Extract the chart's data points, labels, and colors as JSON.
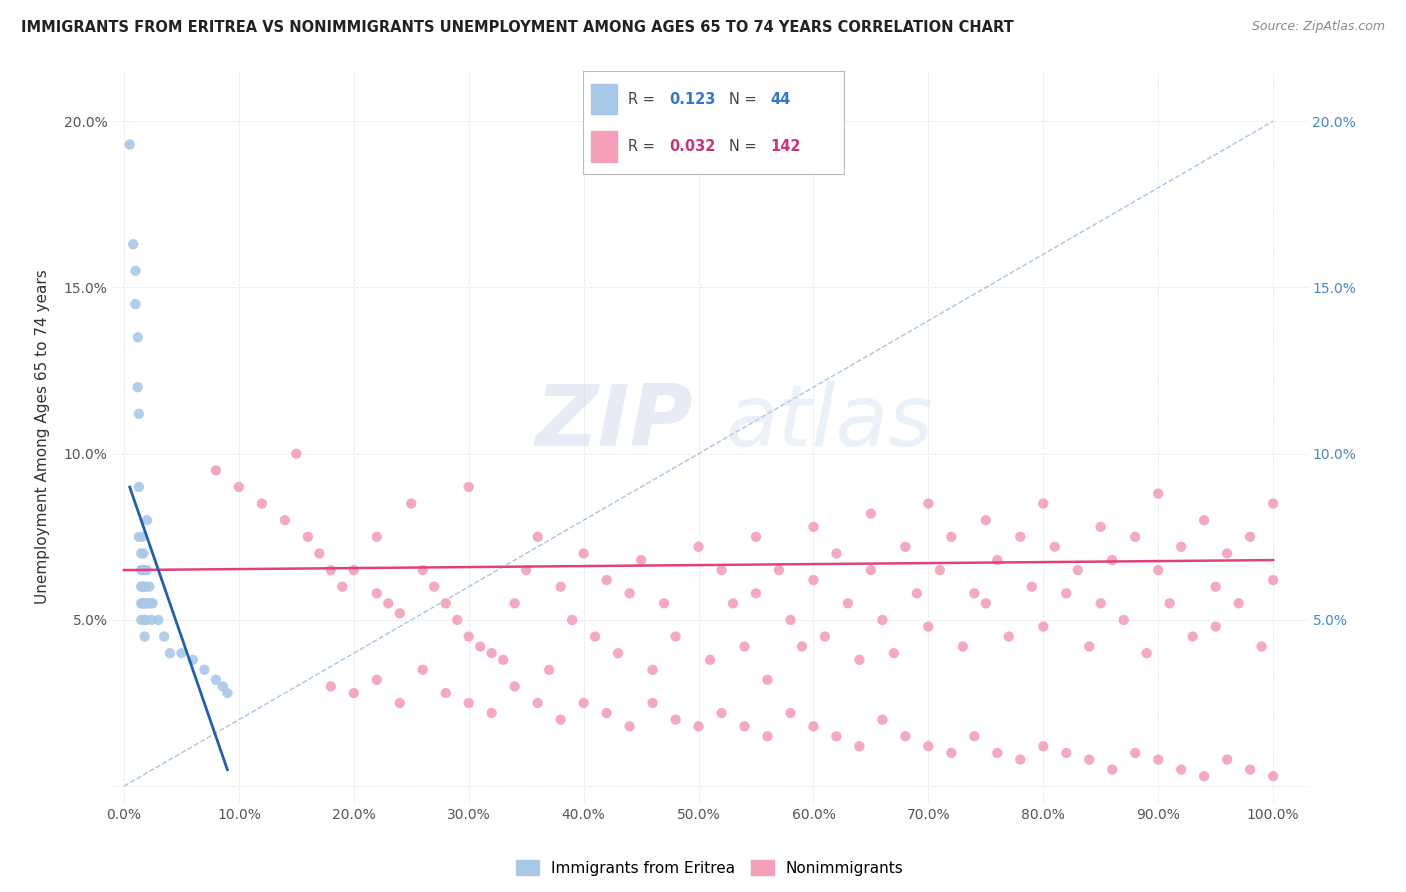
{
  "title": "IMMIGRANTS FROM ERITREA VS NONIMMIGRANTS UNEMPLOYMENT AMONG AGES 65 TO 74 YEARS CORRELATION CHART",
  "source": "Source: ZipAtlas.com",
  "ylabel": "Unemployment Among Ages 65 to 74 years",
  "xticks": [
    0.0,
    0.1,
    0.2,
    0.3,
    0.4,
    0.5,
    0.6,
    0.7,
    0.8,
    0.9,
    1.0
  ],
  "xticklabels": [
    "0.0%",
    "10.0%",
    "20.0%",
    "30.0%",
    "40.0%",
    "50.0%",
    "60.0%",
    "70.0%",
    "80.0%",
    "90.0%",
    "100.0%"
  ],
  "yticks": [
    0.0,
    0.05,
    0.1,
    0.15,
    0.2
  ],
  "yticklabels_left": [
    "",
    "5.0%",
    "10.0%",
    "15.0%",
    "20.0%"
  ],
  "yticklabels_right": [
    "",
    "5.0%",
    "10.0%",
    "15.0%",
    "20.0%"
  ],
  "legend_r_blue": "0.123",
  "legend_n_blue": "44",
  "legend_r_pink": "0.032",
  "legend_n_pink": "142",
  "blue_color": "#a8c8e8",
  "pink_color": "#f4a0b8",
  "blue_line_color": "#2060b0",
  "pink_line_color": "#e04080",
  "diag_color": "#90b8e0",
  "grid_color": "#e8e8e8",
  "blue_scatter_x": [
    0.005,
    0.008,
    0.01,
    0.01,
    0.012,
    0.012,
    0.013,
    0.013,
    0.013,
    0.015,
    0.015,
    0.015,
    0.015,
    0.015,
    0.016,
    0.016,
    0.016,
    0.016,
    0.017,
    0.017,
    0.017,
    0.018,
    0.018,
    0.018,
    0.018,
    0.019,
    0.019,
    0.02,
    0.02,
    0.02,
    0.021,
    0.022,
    0.023,
    0.024,
    0.025,
    0.03,
    0.035,
    0.04,
    0.05,
    0.06,
    0.07,
    0.08,
    0.086,
    0.09
  ],
  "blue_scatter_y": [
    0.193,
    0.163,
    0.155,
    0.145,
    0.135,
    0.12,
    0.112,
    0.09,
    0.075,
    0.07,
    0.065,
    0.06,
    0.055,
    0.05,
    0.075,
    0.065,
    0.06,
    0.055,
    0.07,
    0.06,
    0.055,
    0.065,
    0.055,
    0.05,
    0.045,
    0.06,
    0.05,
    0.08,
    0.065,
    0.055,
    0.055,
    0.06,
    0.055,
    0.05,
    0.055,
    0.05,
    0.045,
    0.04,
    0.04,
    0.038,
    0.035,
    0.032,
    0.03,
    0.028
  ],
  "pink_scatter_x": [
    0.08,
    0.1,
    0.12,
    0.14,
    0.15,
    0.16,
    0.17,
    0.18,
    0.19,
    0.2,
    0.22,
    0.22,
    0.23,
    0.24,
    0.25,
    0.26,
    0.27,
    0.28,
    0.29,
    0.3,
    0.3,
    0.31,
    0.32,
    0.33,
    0.34,
    0.35,
    0.36,
    0.37,
    0.38,
    0.39,
    0.4,
    0.41,
    0.42,
    0.43,
    0.44,
    0.45,
    0.46,
    0.47,
    0.48,
    0.5,
    0.51,
    0.52,
    0.53,
    0.54,
    0.55,
    0.55,
    0.56,
    0.57,
    0.58,
    0.59,
    0.6,
    0.6,
    0.61,
    0.62,
    0.63,
    0.64,
    0.65,
    0.65,
    0.66,
    0.67,
    0.68,
    0.69,
    0.7,
    0.7,
    0.71,
    0.72,
    0.73,
    0.74,
    0.75,
    0.75,
    0.76,
    0.77,
    0.78,
    0.79,
    0.8,
    0.8,
    0.81,
    0.82,
    0.83,
    0.84,
    0.85,
    0.85,
    0.86,
    0.87,
    0.88,
    0.89,
    0.9,
    0.9,
    0.91,
    0.92,
    0.93,
    0.94,
    0.95,
    0.95,
    0.96,
    0.97,
    0.98,
    0.99,
    1.0,
    1.0,
    0.18,
    0.2,
    0.22,
    0.24,
    0.26,
    0.28,
    0.3,
    0.32,
    0.34,
    0.36,
    0.38,
    0.4,
    0.42,
    0.44,
    0.46,
    0.48,
    0.5,
    0.52,
    0.54,
    0.56,
    0.58,
    0.6,
    0.62,
    0.64,
    0.66,
    0.68,
    0.7,
    0.72,
    0.74,
    0.76,
    0.78,
    0.8,
    0.82,
    0.84,
    0.86,
    0.88,
    0.9,
    0.92,
    0.94,
    0.96,
    0.98,
    1.0
  ],
  "pink_scatter_y": [
    0.095,
    0.09,
    0.085,
    0.08,
    0.1,
    0.075,
    0.07,
    0.065,
    0.06,
    0.065,
    0.058,
    0.075,
    0.055,
    0.052,
    0.085,
    0.065,
    0.06,
    0.055,
    0.05,
    0.09,
    0.045,
    0.042,
    0.04,
    0.038,
    0.055,
    0.065,
    0.075,
    0.035,
    0.06,
    0.05,
    0.07,
    0.045,
    0.062,
    0.04,
    0.058,
    0.068,
    0.035,
    0.055,
    0.045,
    0.072,
    0.038,
    0.065,
    0.055,
    0.042,
    0.075,
    0.058,
    0.032,
    0.065,
    0.05,
    0.042,
    0.078,
    0.062,
    0.045,
    0.07,
    0.055,
    0.038,
    0.082,
    0.065,
    0.05,
    0.04,
    0.072,
    0.058,
    0.085,
    0.048,
    0.065,
    0.075,
    0.042,
    0.058,
    0.08,
    0.055,
    0.068,
    0.045,
    0.075,
    0.06,
    0.085,
    0.048,
    0.072,
    0.058,
    0.065,
    0.042,
    0.078,
    0.055,
    0.068,
    0.05,
    0.075,
    0.04,
    0.088,
    0.065,
    0.055,
    0.072,
    0.045,
    0.08,
    0.06,
    0.048,
    0.07,
    0.055,
    0.075,
    0.042,
    0.085,
    0.062,
    0.03,
    0.028,
    0.032,
    0.025,
    0.035,
    0.028,
    0.025,
    0.022,
    0.03,
    0.025,
    0.02,
    0.025,
    0.022,
    0.018,
    0.025,
    0.02,
    0.018,
    0.022,
    0.018,
    0.015,
    0.022,
    0.018,
    0.015,
    0.012,
    0.02,
    0.015,
    0.012,
    0.01,
    0.015,
    0.01,
    0.008,
    0.012,
    0.01,
    0.008,
    0.005,
    0.01,
    0.008,
    0.005,
    0.003,
    0.008,
    0.005,
    0.003
  ]
}
